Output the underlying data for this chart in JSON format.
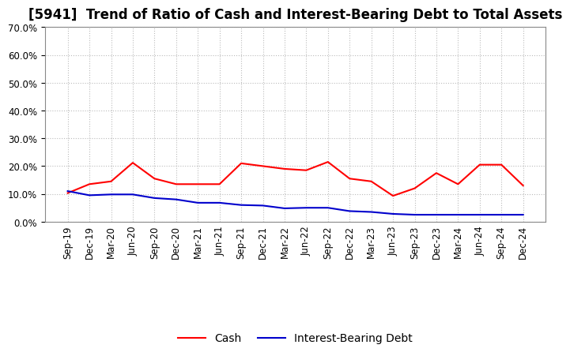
{
  "title": "[5941]  Trend of Ratio of Cash and Interest-Bearing Debt to Total Assets",
  "x_labels": [
    "Sep-19",
    "Dec-19",
    "Mar-20",
    "Jun-20",
    "Sep-20",
    "Dec-20",
    "Mar-21",
    "Jun-21",
    "Sep-21",
    "Dec-21",
    "Mar-22",
    "Jun-22",
    "Sep-22",
    "Dec-22",
    "Mar-23",
    "Jun-23",
    "Sep-23",
    "Dec-23",
    "Mar-24",
    "Jun-24",
    "Sep-24",
    "Dec-24"
  ],
  "cash": [
    0.103,
    0.135,
    0.145,
    0.212,
    0.155,
    0.135,
    0.135,
    0.135,
    0.21,
    0.2,
    0.19,
    0.185,
    0.215,
    0.155,
    0.145,
    0.093,
    0.12,
    0.175,
    0.135,
    0.205,
    0.205,
    0.13
  ],
  "interest_bearing_debt": [
    0.11,
    0.095,
    0.098,
    0.098,
    0.085,
    0.08,
    0.068,
    0.068,
    0.06,
    0.058,
    0.048,
    0.05,
    0.05,
    0.038,
    0.035,
    0.028,
    0.025,
    0.025,
    0.025,
    0.025,
    0.025,
    0.025
  ],
  "cash_color": "#ff0000",
  "debt_color": "#0000cc",
  "background_color": "#ffffff",
  "grid_color": "#bbbbbb",
  "ylim": [
    0.0,
    0.7
  ],
  "yticks": [
    0.0,
    0.1,
    0.2,
    0.3,
    0.4,
    0.5,
    0.6,
    0.7
  ],
  "legend_cash": "Cash",
  "legend_debt": "Interest-Bearing Debt",
  "title_fontsize": 12,
  "tick_fontsize": 8.5,
  "legend_fontsize": 10
}
